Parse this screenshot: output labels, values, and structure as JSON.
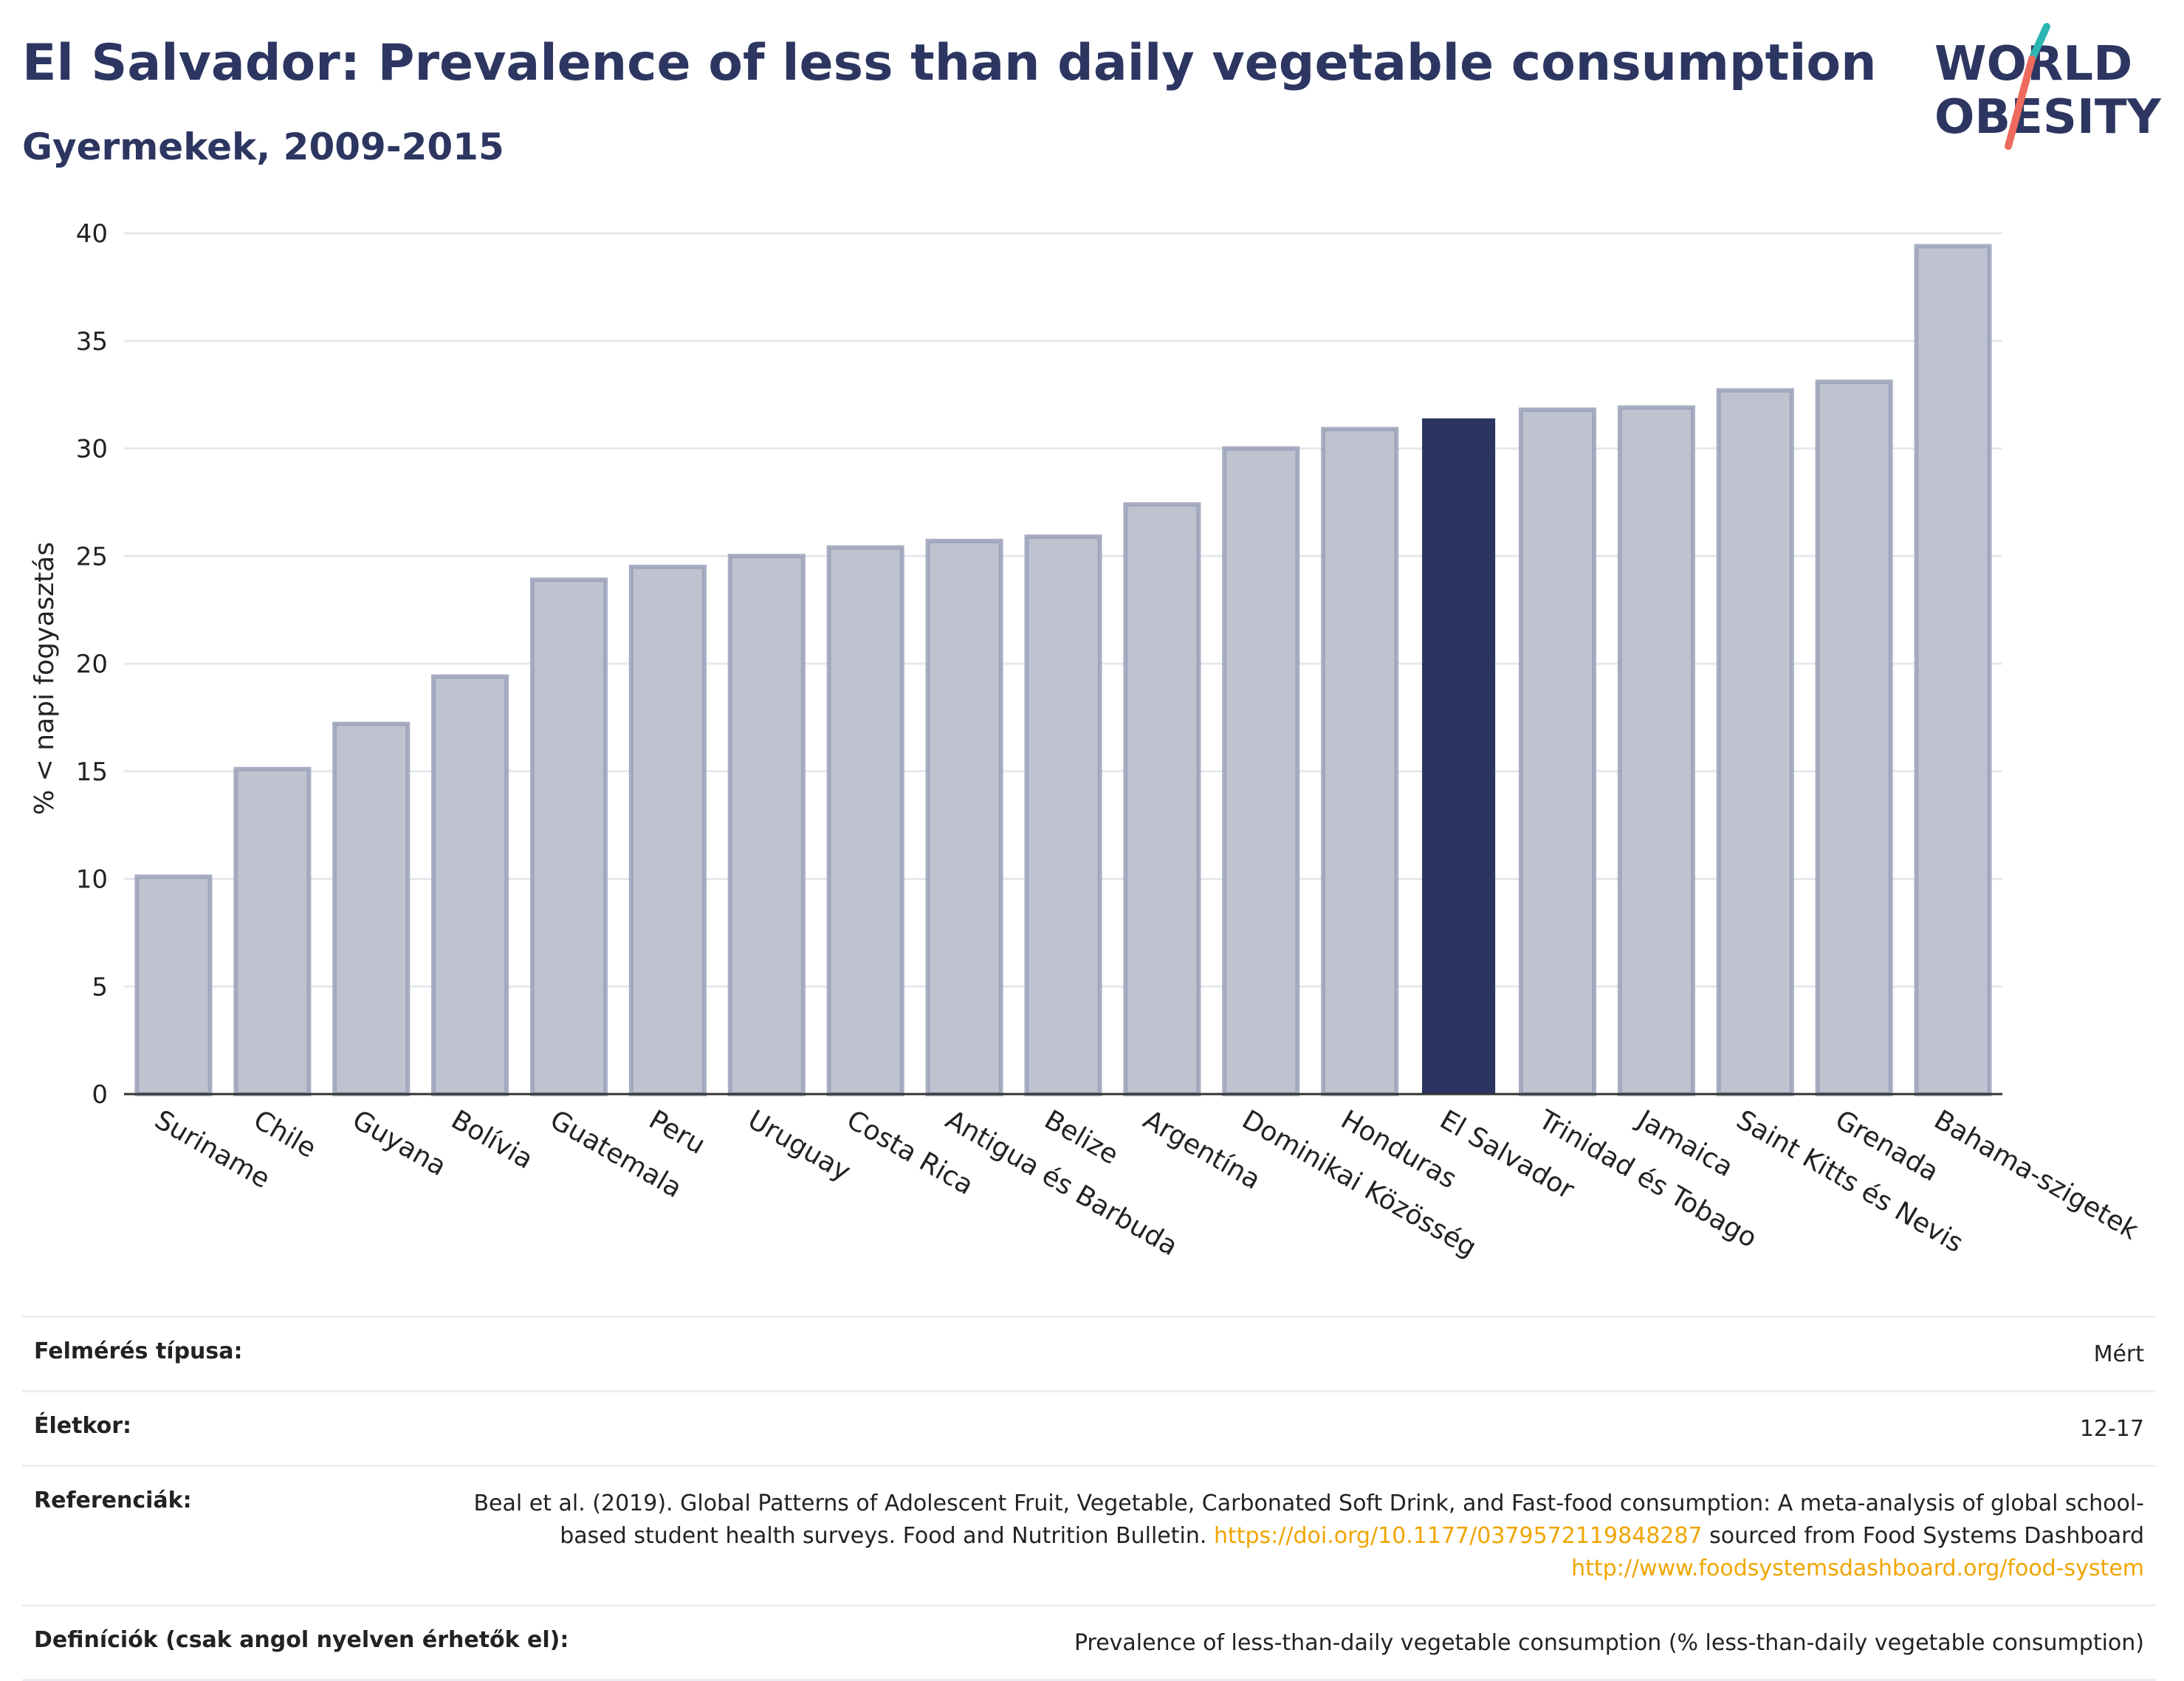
{
  "header": {
    "title": "El Salvador: Prevalence of less than daily vegetable consumption",
    "subtitle": "Gyermekek, 2009-2015"
  },
  "logo": {
    "line1": "WORLD",
    "line2": "OBESITY",
    "colors": {
      "text": "#2c3661",
      "teal": "#2cb5b3",
      "coral": "#ee6a5e"
    }
  },
  "colors": {
    "bar": "#bfc3d0",
    "bar_stroke": "#9aa1b8",
    "highlight": "#2a3561",
    "grid": "#e6e8ee",
    "axis": "#333333"
  },
  "chart_data": {
    "type": "bar",
    "ylabel": "% < napi fogyasztás",
    "ylim": [
      0,
      40
    ],
    "yticks": [
      0,
      5,
      10,
      15,
      20,
      25,
      30,
      35,
      40
    ],
    "grid": true,
    "highlight": "El Salvador",
    "categories": [
      "Suriname",
      "Chile",
      "Guyana",
      "Bolívia",
      "Guatemala",
      "Peru",
      "Uruguay",
      "Costa Rica",
      "Antigua és Barbuda",
      "Belize",
      "Argentína",
      "Dominikai Közösség",
      "Honduras",
      "El Salvador",
      "Trinidad és Tobago",
      "Jamaica",
      "Saint Kitts és Nevis",
      "Grenada",
      "Bahama-szigetek"
    ],
    "values": [
      10.1,
      15.1,
      17.2,
      19.4,
      23.9,
      24.5,
      25.0,
      25.4,
      25.7,
      25.9,
      27.4,
      30.0,
      30.9,
      31.4,
      31.8,
      31.9,
      32.7,
      33.1,
      39.4
    ]
  },
  "info": {
    "survey_type_label": "Felmérés típusa:",
    "survey_type_value": "Mért",
    "age_label": "Életkor:",
    "age_value": "12-17",
    "references_label": "Referenciák:",
    "references_text1": "Beal et al. (2019). Global Patterns of Adolescent Fruit, Vegetable, Carbonated Soft Drink, and Fast-food consumption: A meta-analysis of global school-based student health surveys. Food and Nutrition Bulletin.",
    "references_link1": "https://doi.org/10.1177/0379572119848287",
    "references_text2": "sourced from Food Systems Dashboard",
    "references_link2": "http://www.foodsystemsdashboard.org/food-system",
    "definitions_label": "Definíciók (csak angol nyelven érhetők el):",
    "definitions_value": "Prevalence of less-than-daily vegetable consumption (% less-than-daily vegetable consumption)"
  }
}
